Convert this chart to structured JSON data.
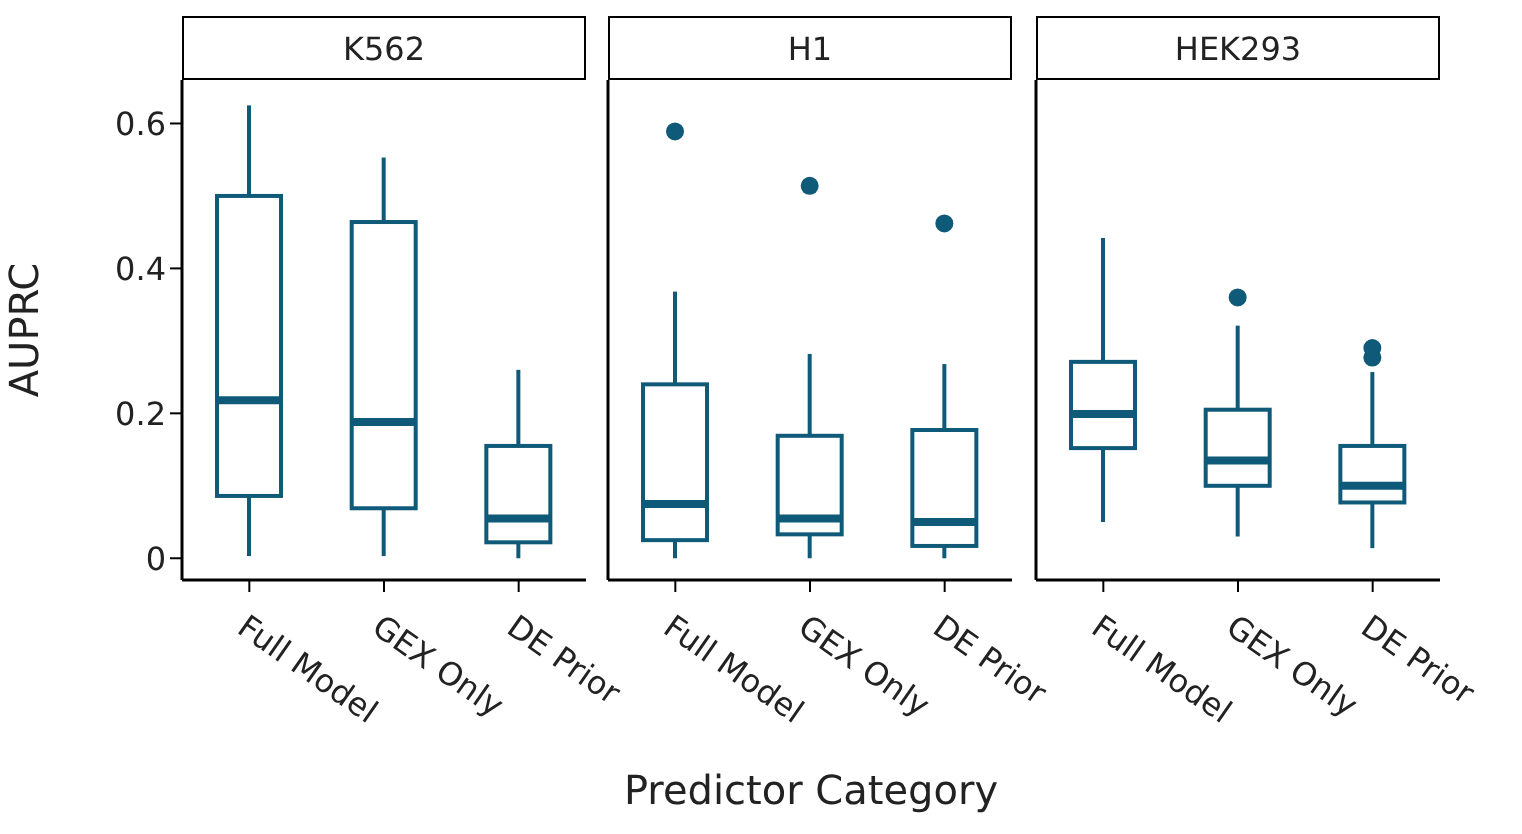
{
  "chart_data": [
    {
      "type": "box",
      "title": "K562",
      "ylabel": "AUPRC",
      "categories": [
        "Full Model",
        "GEX Only",
        "DE Prior"
      ],
      "ylim": [
        -0.03,
        0.66
      ],
      "yticks": [
        0,
        0.2,
        0.4,
        0.6
      ],
      "grid": false,
      "legend": false,
      "series": [
        {
          "color": "#0e5a78",
          "boxes": [
            {
              "low": 0.003,
              "q1": 0.086,
              "median": 0.218,
              "q3": 0.5,
              "high": 0.625
            },
            {
              "low": 0.003,
              "q1": 0.069,
              "median": 0.188,
              "q3": 0.464,
              "high": 0.553
            },
            {
              "low": 0,
              "q1": 0.022,
              "median": 0.055,
              "q3": 0.155,
              "high": 0.26
            }
          ]
        }
      ]
    },
    {
      "type": "box",
      "title": "H1",
      "xlabel": "Predictor Category",
      "categories": [
        "Full Model",
        "GEX Only",
        "DE Prior"
      ],
      "ylim": [
        -0.03,
        0.66
      ],
      "tick_labels": "x",
      "grid": false,
      "legend": false,
      "series": [
        {
          "color": "#0e5a78",
          "boxes": [
            {
              "low": 0,
              "q1": 0.025,
              "median": 0.075,
              "q3": 0.24,
              "high": 0.368,
              "outliers": [
                0.589
              ]
            },
            {
              "low": 0,
              "q1": 0.033,
              "median": 0.055,
              "q3": 0.169,
              "high": 0.282,
              "outliers": [
                0.514
              ]
            },
            {
              "low": 0,
              "q1": 0.017,
              "median": 0.05,
              "q3": 0.177,
              "high": 0.268,
              "outliers": [
                0.462
              ]
            }
          ]
        }
      ]
    },
    {
      "type": "box",
      "title": "HEK293",
      "categories": [
        "Full Model",
        "GEX Only",
        "DE Prior"
      ],
      "ylim": [
        -0.03,
        0.66
      ],
      "tick_labels": "x",
      "grid": false,
      "legend": false,
      "series": [
        {
          "color": "#0e5a78",
          "boxes": [
            {
              "low": 0.05,
              "q1": 0.152,
              "median": 0.199,
              "q3": 0.271,
              "high": 0.442
            },
            {
              "low": 0.03,
              "q1": 0.1,
              "median": 0.135,
              "q3": 0.205,
              "high": 0.321,
              "outliers": [
                0.36
              ]
            },
            {
              "low": 0.014,
              "q1": 0.077,
              "median": 0.1,
              "q3": 0.155,
              "high": 0.257,
              "outliers": [
                0.277,
                0.29
              ]
            }
          ]
        }
      ]
    }
  ]
}
